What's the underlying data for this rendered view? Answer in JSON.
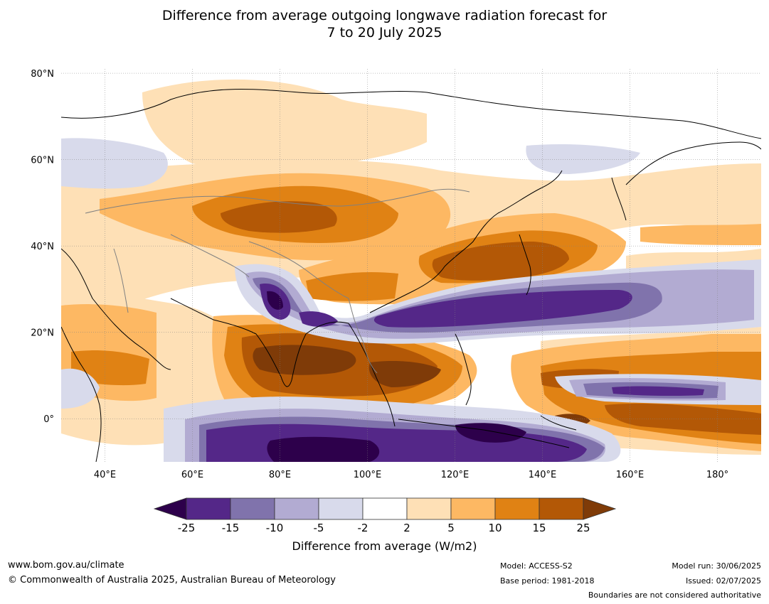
{
  "title_line1": "Difference from average outgoing longwave radiation forecast for",
  "title_line2": "7 to 20 July 2025",
  "map": {
    "lat_labels": [
      "80°N",
      "60°N",
      "40°N",
      "20°N",
      "0°"
    ],
    "lat_values": [
      80,
      60,
      40,
      20,
      0
    ],
    "lon_labels": [
      "40°E",
      "60°E",
      "80°E",
      "100°E",
      "120°E",
      "140°E",
      "160°E",
      "180°"
    ],
    "lon_values": [
      40,
      60,
      80,
      100,
      120,
      140,
      160,
      180
    ],
    "extent": {
      "lon_min": 30,
      "lon_max": 190,
      "lat_min": -10,
      "lat_max": 81
    }
  },
  "colorbar": {
    "ticks": [
      "-25",
      "-15",
      "-10",
      "-5",
      "-2",
      "2",
      "5",
      "10",
      "15",
      "25"
    ],
    "colors": [
      "#542788",
      "#8073ac",
      "#b2abd2",
      "#d8daeb",
      "#ffffff",
      "#fee0b6",
      "#fdb863",
      "#e08214",
      "#b35806"
    ],
    "under_color": "#2d004b",
    "over_color": "#7f3b08",
    "label": "Difference from average (W/m2)"
  },
  "footer": {
    "website": "www.bom.gov.au/climate",
    "copyright": "© Commonwealth of Australia 2025, Australian Bureau of Meteorology",
    "model": "Model: ACCESS-S2",
    "base_period": "Base period: 1981-2018",
    "model_run": "Model run: 30/06/2025",
    "issued": "Issued: 02/07/2025",
    "disclaimer": "Boundaries are not considered authoritative"
  }
}
